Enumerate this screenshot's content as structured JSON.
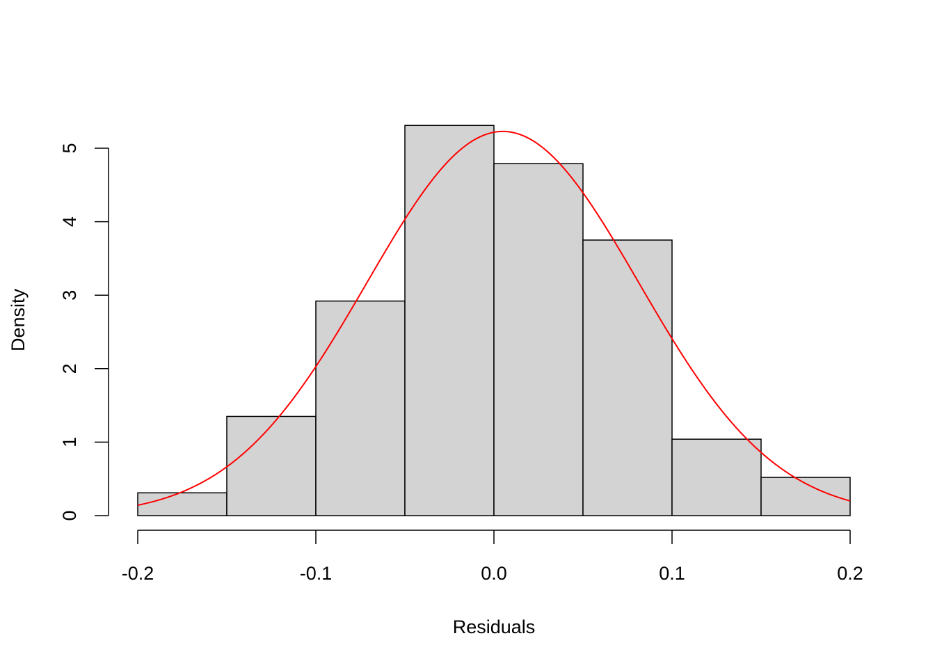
{
  "chart_data": {
    "type": "bar",
    "title": "",
    "xlabel": "Residuals",
    "ylabel": "Density",
    "bins": [
      {
        "x0": -0.2,
        "x1": -0.15,
        "density": 0.31
      },
      {
        "x0": -0.15,
        "x1": -0.1,
        "density": 1.35
      },
      {
        "x0": -0.1,
        "x1": -0.05,
        "density": 2.92
      },
      {
        "x0": -0.05,
        "x1": 0.0,
        "density": 5.31
      },
      {
        "x0": 0.0,
        "x1": 0.05,
        "density": 4.79
      },
      {
        "x0": 0.05,
        "x1": 0.1,
        "density": 3.75
      },
      {
        "x0": 0.1,
        "x1": 0.15,
        "density": 1.04
      },
      {
        "x0": 0.15,
        "x1": 0.2,
        "density": 0.52
      }
    ],
    "x_ticks": [
      -0.2,
      -0.1,
      0.0,
      0.1,
      0.2
    ],
    "x_tick_labels": [
      "-0.2",
      "-0.1",
      "0.0",
      "0.1",
      "0.2"
    ],
    "y_ticks": [
      0,
      1,
      2,
      3,
      4,
      5
    ],
    "y_tick_labels": [
      "0",
      "1",
      "2",
      "3",
      "4",
      "5"
    ],
    "xlim": [
      -0.2,
      0.2
    ],
    "ylim": [
      0,
      5.31
    ],
    "grid": false,
    "legend": "none",
    "bar_fill": "#d3d3d3",
    "bar_stroke": "#000000",
    "density_curve": {
      "type": "line",
      "color": "#ff0000",
      "distribution": "normal",
      "mean": 0.005,
      "sd": 0.0763
    }
  }
}
